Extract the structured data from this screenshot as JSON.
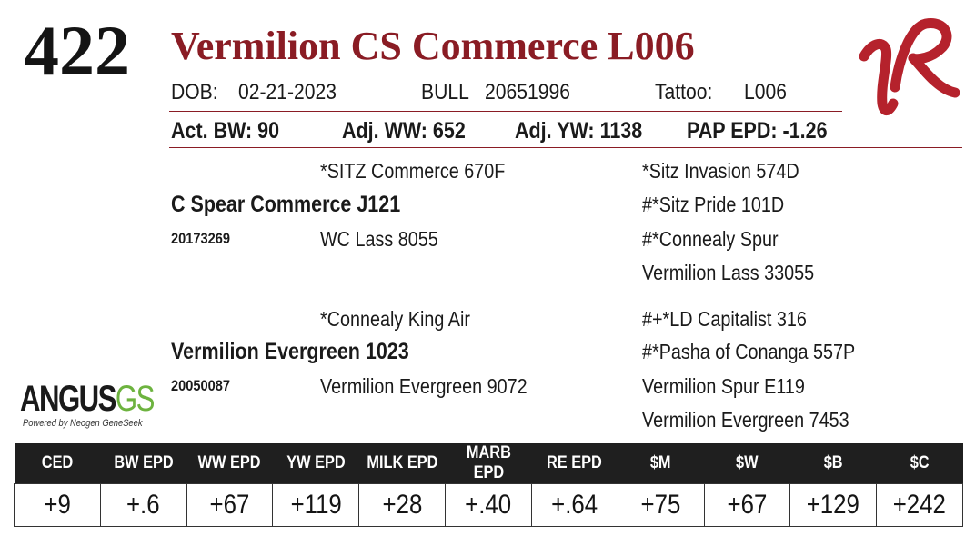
{
  "lot_number": "422",
  "animal_name": "Vermilion CS Commerce L006",
  "info_row": {
    "dob_label": "DOB:",
    "dob_value": "02-21-2023",
    "sex": "BULL",
    "reg_number": "20651996",
    "tattoo_label": "Tattoo:",
    "tattoo_value": "L006"
  },
  "stats_row": {
    "act_bw": "Act. BW: 90",
    "adj_ww": "Adj. WW: 652",
    "adj_yw": "Adj. YW: 1138",
    "pap_epd": "PAP EPD: -1.26"
  },
  "pedigree": {
    "sire_sire": "*SITZ Commerce 670F",
    "sire": "C Spear Commerce J121",
    "sire_reg": "20173269",
    "sire_dam": "WC Lass 8055",
    "dam_sire": "*Connealy King Air",
    "dam": "Vermilion Evergreen 1023",
    "dam_reg": "20050087",
    "dam_dam": "Vermilion Evergreen 9072",
    "great_grandparents": [
      "*Sitz Invasion 574D",
      "#*Sitz Pride 101D",
      "#*Connealy Spur",
      "Vermilion Lass 33055",
      "#+*LD Capitalist 316",
      "#*Pasha of Conanga 557P",
      "Vermilion Spur E119",
      "Vermilion Evergreen 7453"
    ]
  },
  "angus_logo": {
    "text_main": "ANGUS",
    "text_gs": "GS",
    "tagline": "Powered by Neogen GeneSeek"
  },
  "logo_colors": {
    "brand_red": "#8a1c24",
    "logo_red": "#b5222c",
    "angus_green": "#6db33f"
  },
  "epd_table": {
    "headers": [
      "CED",
      "BW EPD",
      "WW EPD",
      "YW EPD",
      "MILK EPD",
      "MARB EPD",
      "RE EPD",
      "$M",
      "$W",
      "$B",
      "$C"
    ],
    "values": [
      "+9",
      "+.6",
      "+67",
      "+119",
      "+28",
      "+.40",
      "+.64",
      "+75",
      "+67",
      "+129",
      "+242"
    ]
  }
}
